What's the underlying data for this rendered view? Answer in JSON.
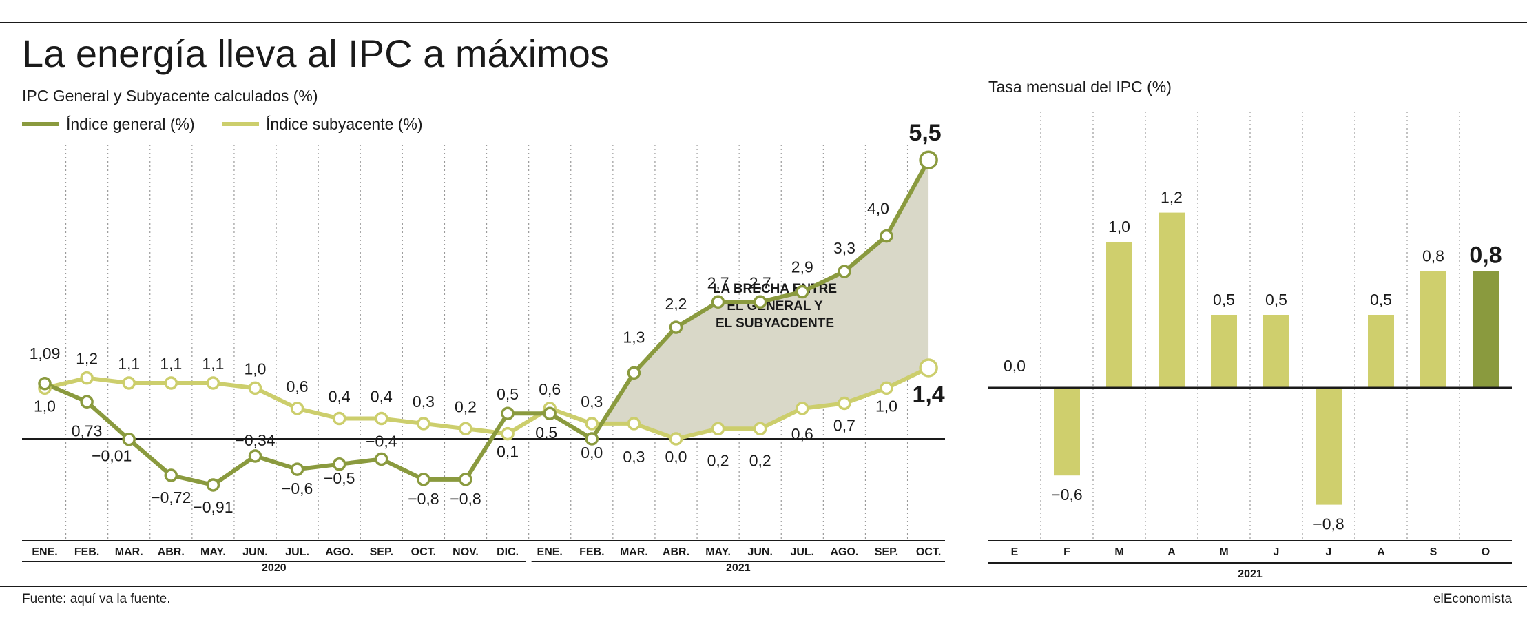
{
  "title": "La energía lleva al IPC a máximos",
  "source": "Fuente: aquí va la fuente.",
  "brand": "elEconomista",
  "colors": {
    "general": "#8a9a3e",
    "subyacente": "#ccce6c",
    "gap": "#d9d8c8",
    "bar_light": "#cfcf6d",
    "bar_dark": "#8a9a3e",
    "text": "#1a1a1a"
  },
  "chart_data": [
    {
      "type": "line",
      "title": "IPC General y Subyacente calculados (%)",
      "categories": [
        "ENE.",
        "FEB.",
        "MAR.",
        "ABR.",
        "MAY.",
        "JUN.",
        "JUL.",
        "AGO.",
        "SEP.",
        "OCT.",
        "NOV.",
        "DIC.",
        "ENE.",
        "FEB.",
        "MAR.",
        "ABR.",
        "MAY.",
        "JUN.",
        "JUL.",
        "AGO.",
        "SEP.",
        "OCT."
      ],
      "year_groups": [
        {
          "label": "2020",
          "count": 12
        },
        {
          "label": "2021",
          "count": 10
        }
      ],
      "series": [
        {
          "name": "Índice general (%)",
          "values": [
            1.09,
            0.73,
            -0.01,
            -0.72,
            -0.91,
            -0.34,
            -0.6,
            -0.5,
            -0.4,
            -0.8,
            -0.8,
            0.5,
            0.5,
            0.0,
            1.3,
            2.2,
            2.7,
            2.7,
            2.9,
            3.3,
            4.0,
            5.5
          ],
          "labels": [
            "1,09",
            "0,73",
            "−0,01",
            "−0,72",
            "−0,91",
            "−0,34",
            "−0,6",
            "−0,5",
            "−0,4",
            "−0,8",
            "−0,8",
            "0,5",
            "0,5",
            "0,0",
            "1,3",
            "2,2",
            "2,7",
            "2,7",
            "2,9",
            "3,3",
            "4,0",
            "5,5"
          ]
        },
        {
          "name": "Índice subyacente (%)",
          "values": [
            1.0,
            1.2,
            1.1,
            1.1,
            1.1,
            1.0,
            0.6,
            0.4,
            0.4,
            0.3,
            0.2,
            0.1,
            0.6,
            0.3,
            0.3,
            0.0,
            0.2,
            0.2,
            0.6,
            0.7,
            1.0,
            1.4
          ],
          "labels": [
            "1,0",
            "1,2",
            "1,1",
            "1,1",
            "1,1",
            "1,0",
            "0,6",
            "0,4",
            "0,4",
            "0,3",
            "0,2",
            "0,1",
            "0,6",
            "0,3",
            "0,3",
            "0,0",
            "0,2",
            "0,2",
            "0,6",
            "0,7",
            "1,0",
            "1,4"
          ]
        }
      ],
      "annotation": [
        "LA BRECHA ENTRE",
        "EL GENERAL Y",
        "EL SUBYACDENTE"
      ],
      "ylim": [
        -1.4,
        5.6
      ],
      "legend": "top-left"
    },
    {
      "type": "bar",
      "title": "Tasa mensual del IPC (%)",
      "categories": [
        "E",
        "F",
        "M",
        "A",
        "M",
        "J",
        "J",
        "A",
        "S",
        "O"
      ],
      "values": [
        0.0,
        -0.6,
        1.0,
        1.2,
        0.5,
        0.5,
        -0.8,
        0.5,
        0.8,
        0.8
      ],
      "labels": [
        "0,0",
        "−0,6",
        "1,0",
        "1,2",
        "0,5",
        "0,5",
        "−0,8",
        "0,5",
        "0,8",
        "0,8"
      ],
      "year": "2021",
      "ylim": [
        -1.0,
        1.9
      ]
    }
  ]
}
